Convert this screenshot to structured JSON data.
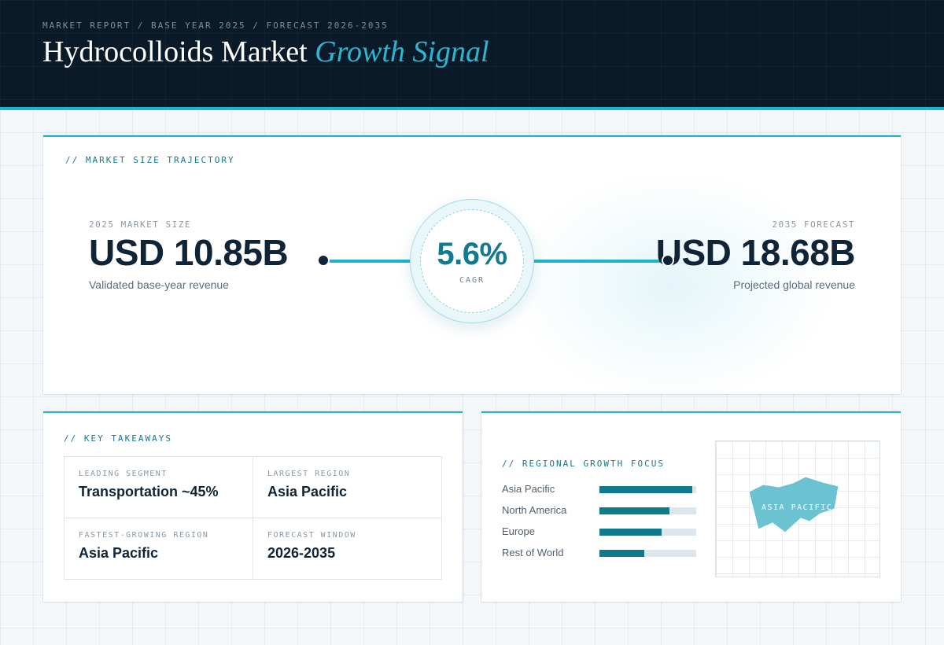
{
  "header": {
    "eyebrow": "MARKET REPORT / BASE YEAR 2025 / FORECAST 2026-2035",
    "title_main": "Hydrocolloids Market ",
    "title_accent": "Growth Signal"
  },
  "trajectory": {
    "section_label": "// MARKET SIZE TRAJECTORY",
    "base": {
      "label": "2025 MARKET SIZE",
      "value": "USD 10.85B",
      "caption": "Validated base-year revenue"
    },
    "cagr": {
      "value": "5.6%",
      "label": "CAGR"
    },
    "forecast": {
      "label": "2035 FORECAST",
      "value": "USD 18.68B",
      "caption": "Projected global revenue"
    }
  },
  "takeaways": {
    "section_label": "// KEY TAKEAWAYS",
    "items": [
      {
        "label": "LEADING SEGMENT",
        "value": "Transportation ~45%"
      },
      {
        "label": "LARGEST REGION",
        "value": "Asia Pacific"
      },
      {
        "label": "FASTEST-GROWING REGION",
        "value": "Asia Pacific"
      },
      {
        "label": "FORECAST WINDOW",
        "value": "2026-2035"
      }
    ]
  },
  "regional": {
    "section_label": "// REGIONAL GROWTH FOCUS",
    "regions": [
      {
        "name": "Asia Pacific",
        "level": 0.96
      },
      {
        "name": "North America",
        "level": 0.72
      },
      {
        "name": "Europe",
        "level": 0.64
      },
      {
        "name": "Rest of World",
        "level": 0.46
      }
    ],
    "map_label": "ASIA PACIFIC"
  },
  "colors": {
    "accent": "#1cb3cf",
    "accent_dark": "#0f7a8c",
    "header_bg": "#0a1a28",
    "text_dark": "#0f2537"
  }
}
